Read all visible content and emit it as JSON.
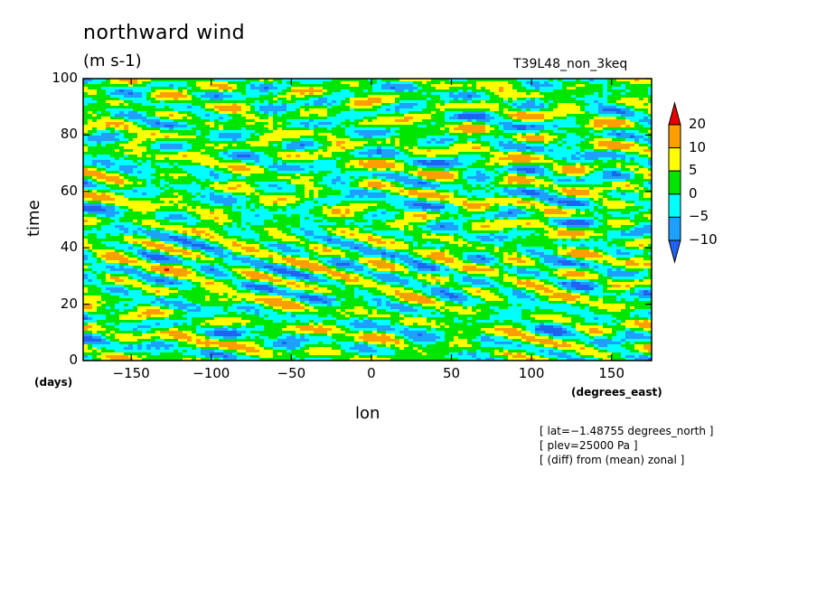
{
  "chart_data": {
    "type": "heatmap",
    "title": "northward wind",
    "units": "(m s-1)",
    "run_label": "T39L48_non_3keq",
    "xlabel": "lon",
    "ylabel": "time",
    "x_unit": "(degrees_east)",
    "y_unit": "(days)",
    "xlim": [
      -180,
      175
    ],
    "ylim": [
      0,
      100
    ],
    "x_ticks": [
      -150,
      -100,
      -50,
      0,
      50,
      100,
      150
    ],
    "y_ticks": [
      0,
      20,
      40,
      60,
      80,
      100
    ],
    "colorbar": {
      "levels": [
        -10,
        -5,
        0,
        5,
        10,
        20
      ],
      "labels": [
        "20",
        "10",
        "5",
        "0",
        "−5",
        "−10"
      ],
      "colors": [
        "#1e64f0",
        "#1ea0ff",
        "#00ffff",
        "#00e600",
        "#ffff00",
        "#ff9e00",
        "#e60000"
      ]
    },
    "notes": [
      "[ lat=−1.48755 degrees_north ]",
      "[ plev=25000 Pa ]",
      "[ (diff) from (mean) zonal ]"
    ]
  }
}
